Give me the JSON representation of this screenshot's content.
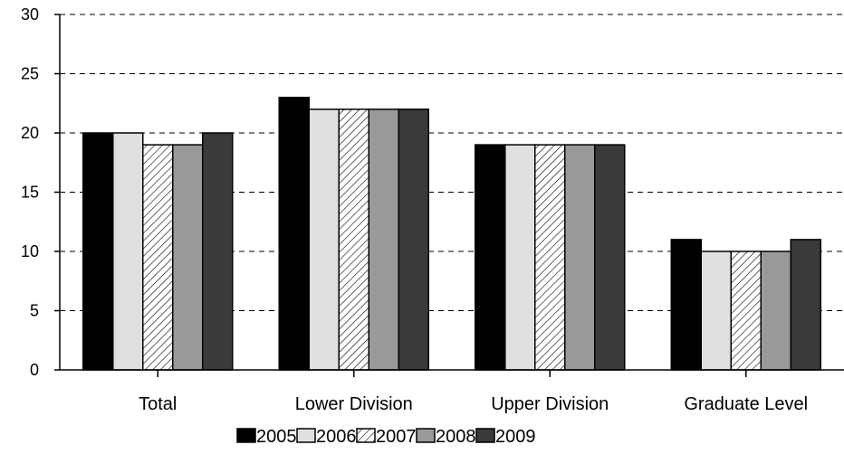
{
  "chart_data": {
    "type": "bar",
    "title": "",
    "xlabel": "",
    "ylabel": "",
    "categories": [
      "Total",
      "Lower Division",
      "Upper Division",
      "Graduate Level"
    ],
    "series": [
      {
        "name": "2005",
        "values": [
          20,
          23,
          19,
          11
        ],
        "fill": "#000000",
        "pattern": "solid"
      },
      {
        "name": "2006",
        "values": [
          20,
          22,
          19,
          10
        ],
        "fill": "#e0e0e0",
        "pattern": "solid"
      },
      {
        "name": "2007",
        "values": [
          19,
          22,
          19,
          10
        ],
        "fill": "#ffffff",
        "pattern": "diagonal-hatch"
      },
      {
        "name": "2008",
        "values": [
          19,
          22,
          19,
          10
        ],
        "fill": "#999999",
        "pattern": "solid"
      },
      {
        "name": "2009",
        "values": [
          20,
          22,
          19,
          11
        ],
        "fill": "#3a3a3a",
        "pattern": "solid"
      }
    ],
    "ylim": [
      0,
      30
    ],
    "yticks": [
      0,
      5,
      10,
      15,
      20,
      25,
      30
    ],
    "grid": "dashed horizontal",
    "legend": "bottom"
  }
}
